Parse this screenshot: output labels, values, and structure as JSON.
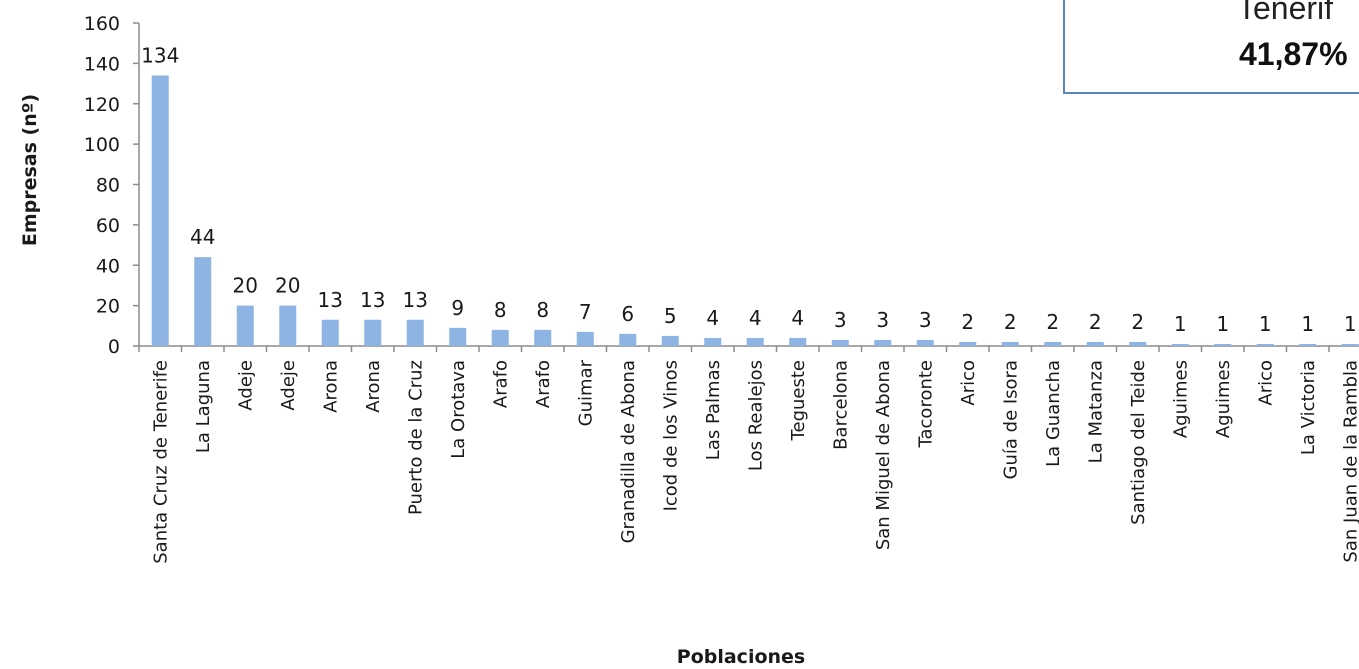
{
  "chart_data": {
    "type": "bar",
    "title": "",
    "xlabel": "Poblaciones",
    "ylabel": "Empresas (nº)",
    "ylim": [
      0,
      160
    ],
    "yticks": [
      "0",
      "20",
      "40",
      "60",
      "80",
      "100",
      "120",
      "140",
      "160"
    ],
    "grid": false,
    "bar_color": "#8db4e2",
    "categories": [
      "Santa Cruz de Tenerife",
      "La Laguna",
      "Adeje",
      "Adeje",
      "Arona",
      "Arona",
      "Puerto de la Cruz",
      "La Orotava",
      "Arafo",
      "Arafo",
      "Guimar",
      "Granadilla de Abona",
      "Icod de los Vinos",
      "Las Palmas",
      "Los Realejos",
      "Tegueste",
      "Barcelona",
      "San Miguel de Abona",
      "Tacoronte",
      "Arico",
      "Guía de Isora",
      "La Guancha",
      "La Matanza",
      "Santiago del Teide",
      "Aguimes",
      "Aguimes",
      "Arico",
      "La Victoria",
      "San Juan de la Rambla"
    ],
    "values": [
      134,
      44,
      20,
      20,
      13,
      13,
      13,
      9,
      8,
      8,
      7,
      6,
      5,
      4,
      4,
      4,
      3,
      3,
      3,
      2,
      2,
      2,
      2,
      2,
      1,
      1,
      1,
      1,
      1
    ],
    "data_labels": [
      "134",
      "44",
      "20",
      "20",
      "13",
      "13",
      "13",
      "9",
      "8",
      "8",
      "7",
      "6",
      "5",
      "4",
      "4",
      "4",
      "3",
      "3",
      "3",
      "2",
      "2",
      "2",
      "2",
      "2",
      "1",
      "1",
      "1",
      "1",
      "1"
    ]
  },
  "callout": {
    "line1": "Tenerif",
    "line2": "41,87%",
    "border_color": "#5b84c4"
  }
}
